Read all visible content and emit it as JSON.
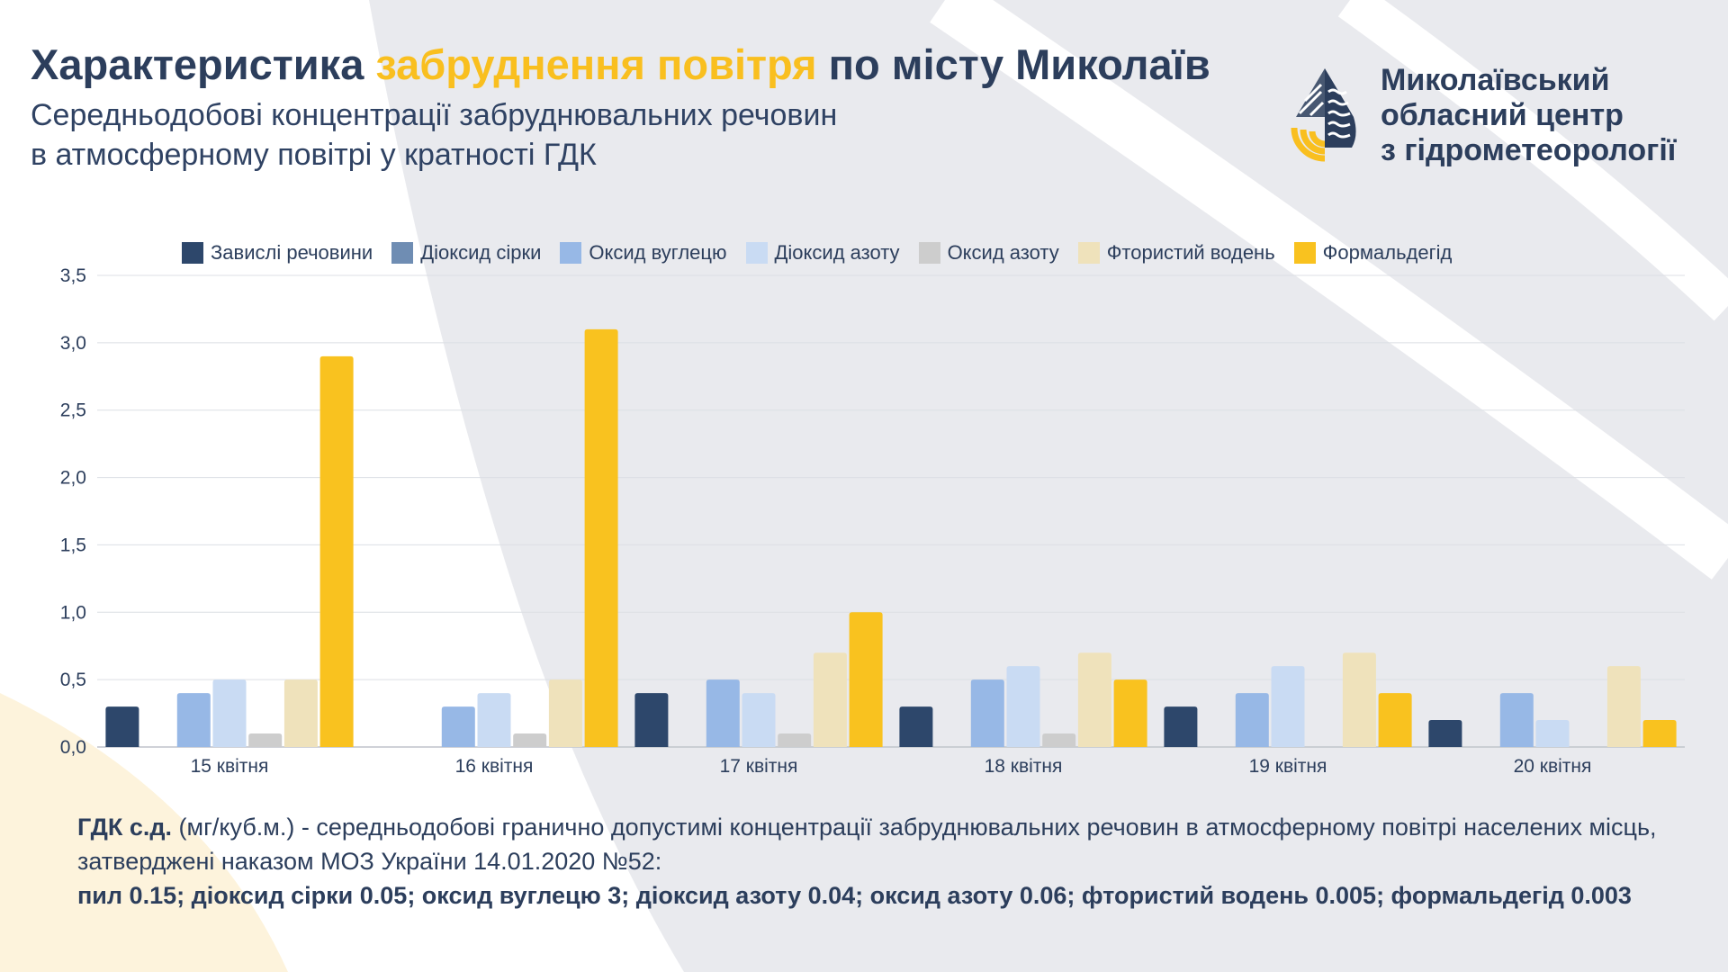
{
  "header": {
    "title_part1": "Характеристика ",
    "title_highlight": "забруднення повітря",
    "title_part2": " по місту Миколаїв",
    "subtitle_line1": "Середньодобові концентрації забруднювальних речовин",
    "subtitle_line2": "в атмосферному повітрі у кратності ГДК"
  },
  "logo": {
    "line1": "Миколаївський",
    "line2": "обласний центр",
    "line3": "з гідрометеорології",
    "icon": "water-drop-logo-icon"
  },
  "colors": {
    "navy": "#2c3e5c",
    "accent": "#f9bf1f",
    "background_shape": "#e9eaee"
  },
  "chart_data": {
    "type": "bar",
    "categories": [
      "15 квітня",
      "16 квітня",
      "17 квітня",
      "18 квітня",
      "19 квітня",
      "20 квітня"
    ],
    "series": [
      {
        "name": "Завислі речовини",
        "color": "#2d476b",
        "values": [
          0.3,
          0.0,
          0.4,
          0.3,
          0.3,
          0.2
        ]
      },
      {
        "name": "Діоксид сірки",
        "color": "#6f8db3",
        "values": [
          0.0,
          0.0,
          0.0,
          0.0,
          0.0,
          0.0
        ]
      },
      {
        "name": "Оксид вуглецю",
        "color": "#97b8e6",
        "values": [
          0.4,
          0.3,
          0.5,
          0.5,
          0.4,
          0.4
        ]
      },
      {
        "name": "Діоксид азоту",
        "color": "#c9dbf3",
        "values": [
          0.5,
          0.4,
          0.4,
          0.6,
          0.6,
          0.2
        ]
      },
      {
        "name": "Оксид азоту",
        "color": "#cdcdcd",
        "values": [
          0.1,
          0.1,
          0.1,
          0.1,
          0.0,
          0.0
        ]
      },
      {
        "name": "Фтористий водень",
        "color": "#efe2bb",
        "values": [
          0.5,
          0.5,
          0.7,
          0.7,
          0.7,
          0.6
        ]
      },
      {
        "name": "Формальдегід",
        "color": "#f9c21f",
        "values": [
          2.9,
          3.1,
          1.0,
          0.5,
          0.4,
          0.2
        ]
      }
    ],
    "yticks": [
      "0,0",
      "0,5",
      "1,0",
      "1,5",
      "2,0",
      "2,5",
      "3,0",
      "3,5"
    ],
    "ylim": [
      0,
      3.5
    ],
    "grid": true,
    "legend_position": "top"
  },
  "footnote": {
    "term": "ГДК с.д.",
    "definition": " (мг/куб.м.) - середньодобові гранично допустимі концентрації забруднювальних речовин в атмосферному повітрі населених місць, затверджені наказом МОЗ України 14.01.2020 №52:",
    "values": "пил 0.15; діоксид сірки 0.05; оксид вуглецю 3; діоксид азоту 0.04; оксид азоту 0.06; фтористий водень 0.005; формальдегід 0.003"
  }
}
